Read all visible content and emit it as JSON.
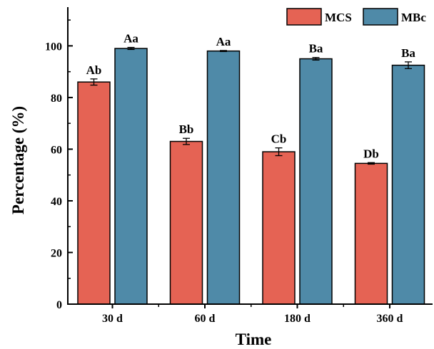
{
  "chart_data": {
    "type": "bar",
    "xlabel": "Time",
    "ylabel": "Percentage (%)",
    "ylim": [
      0,
      115
    ],
    "yticks": [
      "0",
      "20",
      "40",
      "60",
      "80",
      "100"
    ],
    "categories": [
      "30 d",
      "60 d",
      "180 d",
      "360 d"
    ],
    "series": [
      {
        "name": "MCS",
        "color": "#e56354",
        "values": [
          86,
          63,
          59,
          54.5
        ],
        "errors": [
          1.2,
          1.2,
          1.5,
          0.3
        ],
        "labels": [
          "Ab",
          "Bb",
          "Cb",
          "Db"
        ]
      },
      {
        "name": "MBc",
        "color": "#4f8aa8",
        "values": [
          99,
          98,
          95,
          92.5
        ],
        "errors": [
          0.4,
          0.2,
          0.5,
          1.3
        ],
        "labels": [
          "Aa",
          "Aa",
          "Ba",
          "Ba"
        ]
      }
    ],
    "legend_position": "top-right",
    "grid": false
  }
}
